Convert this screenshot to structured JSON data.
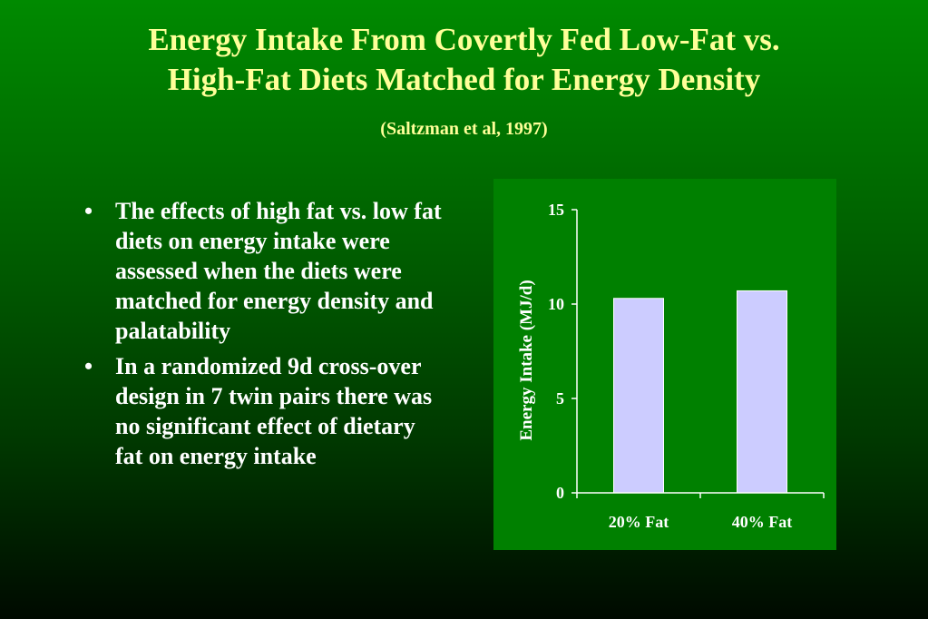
{
  "title": {
    "line1": "Energy Intake From Covertly Fed Low-Fat vs.",
    "line2": "High-Fat Diets Matched for Energy Density"
  },
  "citation": "(Saltzman et al, 1997)",
  "bullets": [
    "The effects of high fat vs. low fat diets on energy intake were assessed when the diets were matched for energy density and palatability",
    "In a randomized 9d cross-over design in 7 twin pairs there was no significant effect of dietary fat on energy intake"
  ],
  "colors": {
    "title": "#ffff99",
    "chart_background": "#008000",
    "bar_fill": "#ccccff"
  },
  "chart_data": {
    "type": "bar",
    "categories": [
      "20% Fat",
      "40% Fat"
    ],
    "values": [
      10.3,
      10.7
    ],
    "title": "",
    "xlabel": "",
    "ylabel": "Energy Intake (MJ/d)",
    "ylim": [
      0,
      15
    ],
    "yticks": [
      0,
      5,
      10,
      15
    ],
    "grid": false,
    "legend": "none"
  }
}
